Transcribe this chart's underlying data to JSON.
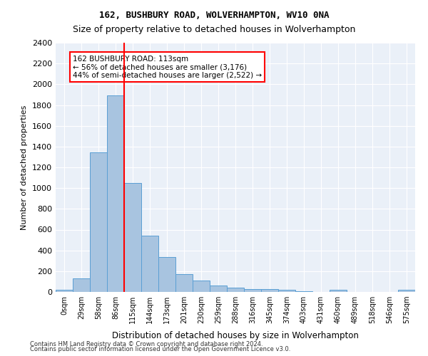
{
  "title1": "162, BUSHBURY ROAD, WOLVERHAMPTON, WV10 0NA",
  "title2": "Size of property relative to detached houses in Wolverhampton",
  "xlabel": "Distribution of detached houses by size in Wolverhampton",
  "ylabel": "Number of detached properties",
  "bar_labels": [
    "0sqm",
    "29sqm",
    "58sqm",
    "86sqm",
    "115sqm",
    "144sqm",
    "173sqm",
    "201sqm",
    "230sqm",
    "259sqm",
    "288sqm",
    "316sqm",
    "345sqm",
    "374sqm",
    "403sqm",
    "431sqm",
    "460sqm",
    "489sqm",
    "518sqm",
    "546sqm",
    "575sqm"
  ],
  "bar_values": [
    20,
    128,
    1345,
    1893,
    1047,
    543,
    338,
    170,
    110,
    63,
    42,
    30,
    27,
    20,
    10,
    0,
    20,
    0,
    0,
    0,
    20
  ],
  "bar_color": "#a8c4e0",
  "bar_edge_color": "#5a9fd4",
  "marker_value": 113,
  "marker_bin_index": 4,
  "annotation_text": "162 BUSHBURY ROAD: 113sqm\n← 56% of detached houses are smaller (3,176)\n44% of semi-detached houses are larger (2,522) →",
  "annotation_box_color": "white",
  "annotation_box_edge_color": "red",
  "vline_color": "red",
  "ylim": [
    0,
    2400
  ],
  "yticks": [
    0,
    200,
    400,
    600,
    800,
    1000,
    1200,
    1400,
    1600,
    1800,
    2000,
    2200,
    2400
  ],
  "background_color": "#eaf0f8",
  "footer1": "Contains HM Land Registry data © Crown copyright and database right 2024.",
  "footer2": "Contains public sector information licensed under the Open Government Licence v3.0."
}
